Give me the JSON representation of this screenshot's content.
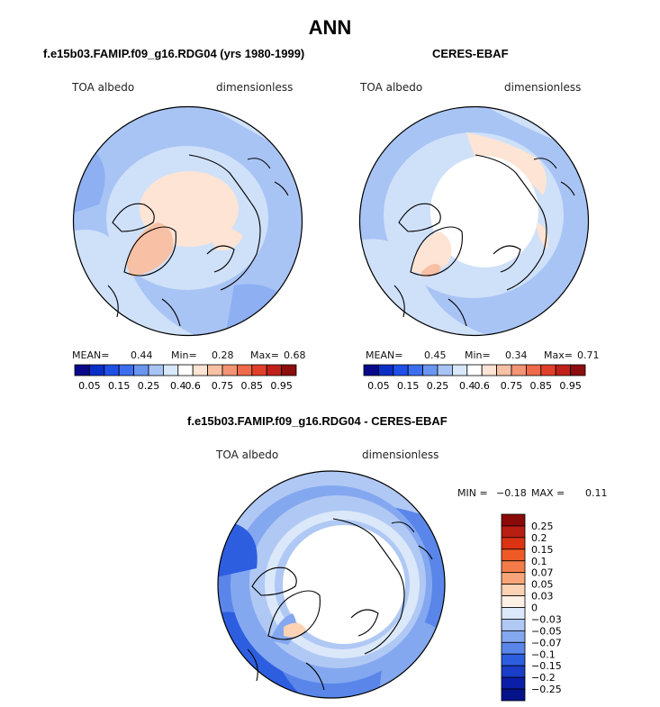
{
  "main_title": "ANN",
  "panels": [
    {
      "title": "f.e15b03.FAMIP.f09_g16.RDG04 (yrs 1980-1999)",
      "variable": "TOA albedo",
      "units": "dimensionless",
      "mean_label": "MEAN=",
      "mean": "0.44",
      "min_label": "Min=",
      "min": "0.28",
      "max_label": "Max=",
      "max": "0.68"
    },
    {
      "title": "CERES-EBAF",
      "variable": "TOA albedo",
      "units": "dimensionless",
      "mean_label": "MEAN=",
      "mean": "0.45",
      "min_label": "Min=",
      "min": "0.34",
      "max_label": "Max=",
      "max": "0.71"
    }
  ],
  "colorbar_abs": {
    "colors": [
      "#08088a",
      "#0a2fc8",
      "#1e50e8",
      "#3c6ef0",
      "#6a95f0",
      "#a8c4f5",
      "#d8e8fb",
      "#ffffff",
      "#fde4d4",
      "#f8c0a4",
      "#f39474",
      "#ee6a4a",
      "#e0402a",
      "#c0201a",
      "#8c0e0e"
    ],
    "ticks": [
      "0.05",
      "0.15",
      "0.25",
      "0.4",
      "0.6",
      "0.75",
      "0.85",
      "0.95"
    ]
  },
  "diff_panel": {
    "title": "f.e15b03.FAMIP.f09_g16.RDG04 - CERES-EBAF",
    "variable": "TOA albedo",
    "units": "dimensionless",
    "min_label": "MIN =",
    "min": "−0.18",
    "max_label": "MAX =",
    "max": "0.11"
  },
  "colorbar_diff": {
    "colors": [
      "#8a0a0a",
      "#b81e12",
      "#dc3412",
      "#f05a26",
      "#f47c4a",
      "#f7a478",
      "#fbd2b4",
      "#fdf0e4",
      "#dbe8fa",
      "#b0c8f4",
      "#84a8f0",
      "#5a86ea",
      "#2e5ee0",
      "#1a3ec8",
      "#0a1ea8",
      "#06128a"
    ],
    "ticks": [
      "0.25",
      "0.2",
      "0.15",
      "0.1",
      "0.07",
      "0.05",
      "0.03",
      "0",
      "−0.03",
      "−0.05",
      "−0.07",
      "−0.1",
      "−0.15",
      "−0.2",
      "−0.25"
    ]
  }
}
